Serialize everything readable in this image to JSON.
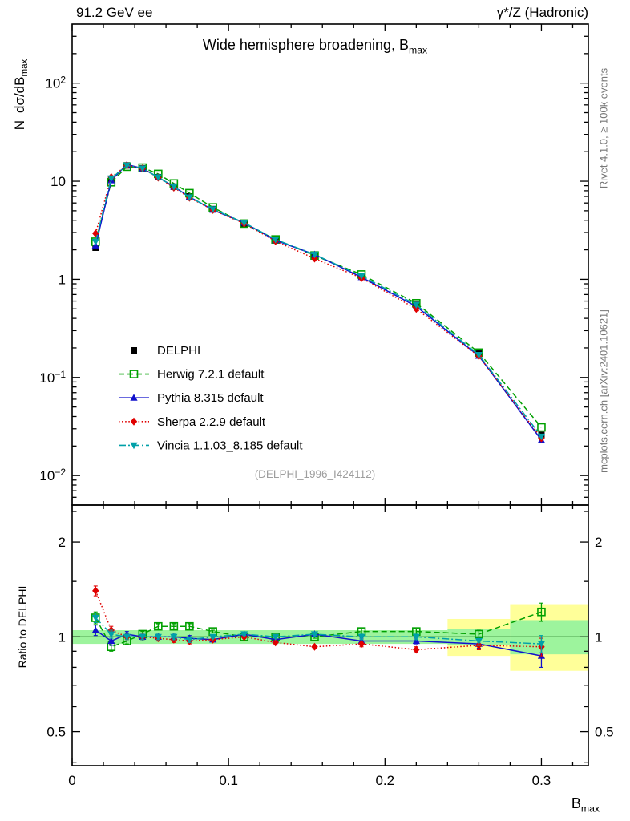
{
  "header": {
    "left": "91.2 GeV ee",
    "right": "γ*/Z (Hadronic)"
  },
  "title": {
    "text": "Wide hemisphere broadening, B",
    "sub": "max"
  },
  "axes": {
    "main_ylabel": {
      "pre": "N",
      "text": "dσ/dB",
      "sub": "max"
    },
    "ratio_ylabel": "Ratio to DELPHI",
    "xlabel": {
      "text": "B",
      "sub": "max"
    }
  },
  "side_notes": {
    "top_right": "Rivet 4.1.0, ≥ 100k events",
    "bottom_right": "mcplots.cern.ch [arXiv:2401.10621]"
  },
  "watermark": "(DELPHI_1996_I424112)",
  "chart_data": {
    "type": "line",
    "title": "Wide hemisphere broadening, B_max",
    "xlabel": "B_max",
    "ylabel": "N dσ/dB_max",
    "ratio_label": "Ratio to DELPHI",
    "x": [
      0.015,
      0.025,
      0.035,
      0.045,
      0.055,
      0.065,
      0.075,
      0.09,
      0.11,
      0.13,
      0.155,
      0.185,
      0.22,
      0.26,
      0.3
    ],
    "series": [
      {
        "id": "delphi",
        "name": "DELPHI",
        "color": "#000000",
        "marker": "square-filled",
        "line": "none",
        "values": [
          2.1,
          10.5,
          14.5,
          13.5,
          11.0,
          8.8,
          7.0,
          5.2,
          3.7,
          2.55,
          1.75,
          1.08,
          0.55,
          0.175,
          0.026
        ]
      },
      {
        "id": "herwig",
        "name": "Herwig 7.2.1 default",
        "color": "#00a000",
        "marker": "square-open",
        "line": "dashed",
        "values": [
          2.42,
          9.77,
          14.07,
          13.77,
          11.88,
          9.5,
          7.56,
          5.41,
          3.7,
          2.55,
          1.75,
          1.12,
          0.57,
          0.179,
          0.031
        ],
        "ratio": [
          1.15,
          0.93,
          0.97,
          1.02,
          1.08,
          1.08,
          1.08,
          1.04,
          1.0,
          1.0,
          1.0,
          1.04,
          1.04,
          1.02,
          1.2
        ],
        "ratio_err": [
          0.05,
          0.03,
          0.02,
          0.02,
          0.02,
          0.02,
          0.02,
          0.01,
          0.01,
          0.01,
          0.01,
          0.02,
          0.02,
          0.03,
          0.08
        ]
      },
      {
        "id": "pythia",
        "name": "Pythia 8.315 default",
        "color": "#1111cc",
        "marker": "triangle-up",
        "line": "solid",
        "values": [
          2.21,
          10.19,
          14.79,
          13.5,
          11.0,
          8.8,
          6.93,
          5.1,
          3.77,
          2.5,
          1.79,
          1.05,
          0.53,
          0.166,
          0.023
        ],
        "ratio": [
          1.05,
          0.97,
          1.02,
          1.0,
          1.0,
          1.0,
          0.99,
          0.98,
          1.02,
          0.98,
          1.02,
          0.97,
          0.97,
          0.95,
          0.87
        ],
        "ratio_err": [
          0.04,
          0.03,
          0.02,
          0.02,
          0.02,
          0.02,
          0.02,
          0.01,
          0.01,
          0.01,
          0.01,
          0.02,
          0.02,
          0.03,
          0.07
        ]
      },
      {
        "id": "sherpa",
        "name": "Sherpa 2.2.9 default",
        "color": "#e00000",
        "marker": "diamond",
        "line": "dotted",
        "values": [
          2.94,
          11.03,
          14.5,
          13.5,
          10.89,
          8.62,
          6.79,
          5.1,
          3.7,
          2.45,
          1.63,
          1.03,
          0.5,
          0.165,
          0.024
        ],
        "ratio": [
          1.4,
          1.05,
          1.0,
          1.0,
          0.99,
          0.98,
          0.97,
          0.98,
          1.0,
          0.96,
          0.93,
          0.95,
          0.91,
          0.94,
          0.93
        ],
        "ratio_err": [
          0.05,
          0.03,
          0.02,
          0.02,
          0.02,
          0.02,
          0.02,
          0.01,
          0.01,
          0.01,
          0.01,
          0.02,
          0.02,
          0.03,
          0.06
        ]
      },
      {
        "id": "vincia",
        "name": "Vincia 1.1.03_8.185 default",
        "color": "#00a0a8",
        "marker": "triangle-down",
        "line": "dashdot",
        "values": [
          2.42,
          10.71,
          14.5,
          13.5,
          11.0,
          8.8,
          6.86,
          5.2,
          3.77,
          2.55,
          1.79,
          1.08,
          0.55,
          0.17,
          0.025
        ],
        "ratio": [
          1.15,
          1.02,
          1.0,
          1.0,
          1.0,
          1.0,
          0.98,
          1.0,
          1.02,
          1.0,
          1.02,
          1.0,
          1.0,
          0.97,
          0.95
        ],
        "ratio_err": [
          0.04,
          0.03,
          0.02,
          0.02,
          0.02,
          0.02,
          0.02,
          0.01,
          0.01,
          0.01,
          0.01,
          0.02,
          0.02,
          0.03,
          0.06
        ]
      }
    ],
    "ratio_bands": {
      "green_color": "#9df49d",
      "yellow_color": "#ffff99",
      "green": [
        {
          "x0": 0.0,
          "x1": 0.24,
          "lo": 0.95,
          "hi": 1.05
        },
        {
          "x0": 0.24,
          "x1": 0.28,
          "lo": 0.94,
          "hi": 1.06
        },
        {
          "x0": 0.28,
          "x1": 0.33,
          "lo": 0.88,
          "hi": 1.13
        }
      ],
      "yellow": [
        {
          "x0": 0.24,
          "x1": 0.28,
          "lo": 0.87,
          "hi": 1.14
        },
        {
          "x0": 0.28,
          "x1": 0.33,
          "lo": 0.78,
          "hi": 1.27
        }
      ],
      "reference_line": 1.0
    },
    "layout": {
      "xlim": [
        0,
        0.33
      ],
      "main_ylim": [
        0.005,
        400
      ],
      "ratio_ylim": [
        0.39,
        2.62
      ],
      "main_yscale": "log",
      "ratio_yscale": "log",
      "x_major": [
        0,
        0.1,
        0.2,
        0.3
      ],
      "x_major_labels": [
        "0",
        "0.1",
        "0.2",
        "0.3"
      ],
      "x_minor_step": 0.02,
      "main_y_decades": [
        -2,
        -1,
        0,
        1,
        2
      ],
      "ratio_major": [
        0.5,
        1,
        2
      ],
      "ratio_major_labels": [
        "0.5",
        "1",
        "2"
      ],
      "ratio_minor": [
        0.4,
        0.6,
        0.7,
        0.8,
        0.9,
        1.5,
        2.5
      ],
      "legend_position": "center-left",
      "grid": false
    }
  }
}
